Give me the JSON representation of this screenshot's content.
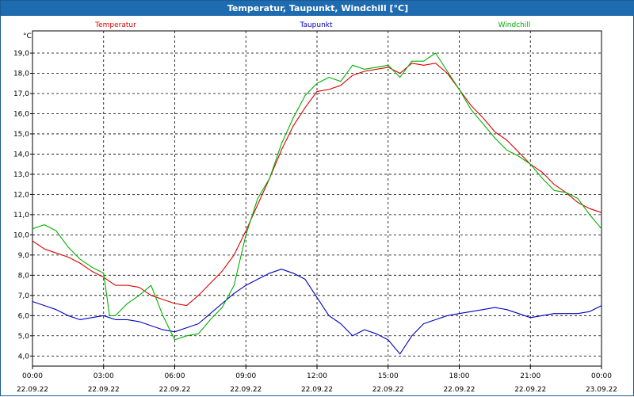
{
  "window": {
    "title": "Temperatur, Taupunkt, Windchill [°C]"
  },
  "chart_data": {
    "type": "line",
    "title": "Temperatur, Taupunkt, Windchill [°C]",
    "ylabel": "°C",
    "xlabel": "",
    "ylim": [
      3.5,
      20.1
    ],
    "xlim": [
      0,
      24
    ],
    "grid": true,
    "yticks": [
      4.0,
      5.0,
      6.0,
      7.0,
      8.0,
      9.0,
      10.0,
      11.0,
      12.0,
      13.0,
      14.0,
      15.0,
      16.0,
      17.0,
      18.0,
      19.0
    ],
    "ytick_labels": [
      "4,0",
      "5,0",
      "6,0",
      "7,0",
      "8,0",
      "9,0",
      "10,0",
      "11,0",
      "12,0",
      "13,0",
      "14,0",
      "15,0",
      "16,0",
      "17,0",
      "18,0",
      "19,0"
    ],
    "xticks": [
      0,
      3,
      6,
      9,
      12,
      15,
      18,
      21,
      24
    ],
    "xtick_labels": [
      {
        "time": "00:00",
        "date": "22.09.22"
      },
      {
        "time": "03:00",
        "date": "22.09.22"
      },
      {
        "time": "06:00",
        "date": "22.09.22"
      },
      {
        "time": "09:00",
        "date": "22.09.22"
      },
      {
        "time": "12:00",
        "date": "22.09.22"
      },
      {
        "time": "15:00",
        "date": "22.09.22"
      },
      {
        "time": "18:00",
        "date": "22.09.22"
      },
      {
        "time": "21:00",
        "date": "22.09.22"
      },
      {
        "time": "00:00",
        "date": "23.09.22"
      }
    ],
    "series": [
      {
        "name": "Temperatur",
        "color": "#dd0000",
        "x": [
          0,
          0.5,
          1,
          1.5,
          2,
          2.5,
          3,
          3.5,
          4,
          4.5,
          5,
          5.5,
          6,
          6.5,
          7,
          7.5,
          8,
          8.5,
          9,
          9.5,
          10,
          10.5,
          11,
          11.5,
          12,
          12.5,
          13,
          13.5,
          14,
          14.5,
          15,
          15.5,
          16,
          16.5,
          17,
          17.5,
          18,
          18.5,
          19,
          19.5,
          20,
          20.5,
          21,
          21.5,
          22,
          22.5,
          23,
          23.5,
          24
        ],
        "values": [
          9.7,
          9.3,
          9.1,
          8.9,
          8.6,
          8.2,
          7.9,
          7.5,
          7.5,
          7.4,
          7.0,
          6.8,
          6.6,
          6.5,
          7.0,
          7.6,
          8.2,
          9.0,
          10.2,
          11.5,
          12.8,
          14.2,
          15.4,
          16.3,
          17.1,
          17.2,
          17.4,
          17.9,
          18.1,
          18.2,
          18.3,
          18.0,
          18.5,
          18.4,
          18.5,
          18.0,
          17.2,
          16.4,
          15.8,
          15.1,
          14.7,
          14.1,
          13.5,
          13.1,
          12.5,
          12.1,
          11.6,
          11.3,
          11.1
        ]
      },
      {
        "name": "Taupunkt",
        "color": "#0000c0",
        "x": [
          0,
          0.5,
          1,
          1.5,
          2,
          2.5,
          3,
          3.5,
          4,
          4.5,
          5,
          5.5,
          6,
          6.5,
          7,
          7.5,
          8,
          8.5,
          9,
          9.5,
          10,
          10.5,
          11,
          11.5,
          12,
          12.5,
          13,
          13.5,
          14,
          14.5,
          15,
          15.5,
          16,
          16.5,
          17,
          17.5,
          18,
          18.5,
          19,
          19.5,
          20,
          20.5,
          21,
          21.5,
          22,
          22.5,
          23,
          23.5,
          24
        ],
        "values": [
          6.7,
          6.5,
          6.3,
          6.0,
          5.8,
          5.9,
          6.0,
          5.8,
          5.8,
          5.7,
          5.5,
          5.3,
          5.2,
          5.4,
          5.6,
          6.1,
          6.6,
          7.1,
          7.5,
          7.8,
          8.1,
          8.3,
          8.1,
          7.8,
          6.9,
          6.0,
          5.6,
          5.0,
          5.3,
          5.1,
          4.8,
          4.1,
          5.0,
          5.6,
          5.8,
          6.0,
          6.1,
          6.2,
          6.3,
          6.4,
          6.3,
          6.1,
          5.9,
          6.0,
          6.1,
          6.1,
          6.1,
          6.2,
          6.5
        ]
      },
      {
        "name": "Windchill",
        "color": "#00b000",
        "x": [
          0,
          0.5,
          1,
          1.5,
          2,
          2.5,
          3,
          3.25,
          3.5,
          4,
          4.5,
          5,
          5.5,
          6,
          6.5,
          7,
          7.5,
          8,
          8.5,
          9,
          9.5,
          10,
          10.5,
          11,
          11.5,
          12,
          12.5,
          13,
          13.5,
          14,
          14.5,
          15,
          15.5,
          16,
          16.5,
          17,
          17.5,
          18,
          18.5,
          19,
          19.5,
          20,
          20.5,
          21,
          21.5,
          22,
          22.5,
          23,
          23.5,
          24
        ],
        "values": [
          10.3,
          10.5,
          10.2,
          9.4,
          8.8,
          8.4,
          8.1,
          6.0,
          6.0,
          6.6,
          7.0,
          7.5,
          6.0,
          4.8,
          5.0,
          5.1,
          5.8,
          6.4,
          7.5,
          10.0,
          11.8,
          12.8,
          14.5,
          15.8,
          16.9,
          17.5,
          17.8,
          17.6,
          18.4,
          18.2,
          18.3,
          18.4,
          17.8,
          18.6,
          18.6,
          19.0,
          18.1,
          17.2,
          16.2,
          15.5,
          14.8,
          14.2,
          13.9,
          13.5,
          12.8,
          12.2,
          12.1,
          11.8,
          11.0,
          10.3
        ]
      }
    ]
  }
}
